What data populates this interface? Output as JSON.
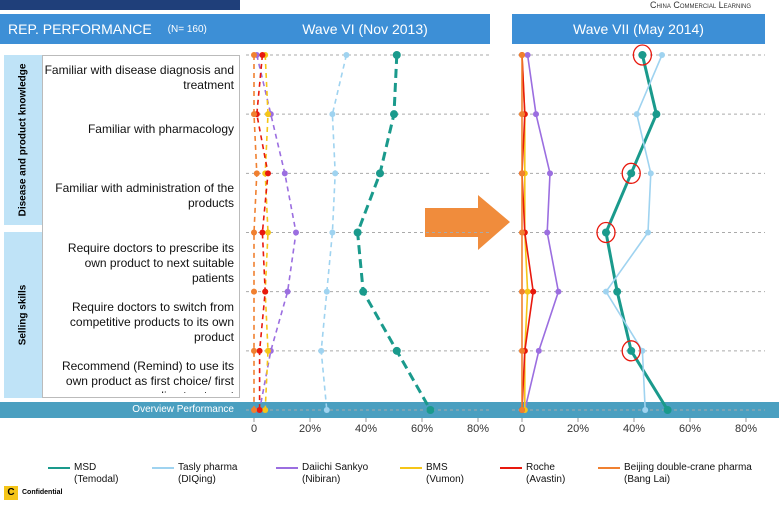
{
  "header": {
    "title": "REP. PERFORMANCE",
    "sample": "(N= 160)",
    "brand": "China Commercial Learning",
    "footer": "Confidential"
  },
  "groups": [
    "Disease and product knowledge",
    "Selling skills"
  ],
  "chart_data": [
    {
      "type": "line",
      "orientation": "horizontal",
      "title": "Wave VI (Nov 2013)",
      "line_style": "dashed",
      "categories": [
        "Familiar with disease diagnosis and treatment",
        "Familiar with pharmacology",
        "Familiar with administration of the products",
        "Require doctors to prescribe its own product to next suitable patients",
        "Require doctors to switch from competitive products to its own product",
        "Recommend (Remind) to use its own product as first choice/ first line treatment",
        "Overview Performance"
      ],
      "xlim": [
        0,
        80
      ],
      "xticks": [
        0,
        {
          "value": 20,
          "label": "20%"
        },
        {
          "value": 40,
          "label": "40%"
        },
        {
          "value": 60,
          "label": "60%"
        },
        {
          "value": 80,
          "label": "80%"
        }
      ],
      "grid": true,
      "series": [
        {
          "name": "MSD\n(Temodal)",
          "color": "#1a9a8c",
          "values": [
            51,
            50,
            45,
            37,
            39,
            51,
            63
          ]
        },
        {
          "name": "Tasly pharma\n(DIQing)",
          "color": "#9fd3f0",
          "values": [
            33,
            28,
            29,
            28,
            26,
            24,
            26
          ]
        },
        {
          "name": "Daiichi Sankyo\n(Nibiran)",
          "color": "#9b6ee0",
          "values": [
            1,
            6,
            11,
            15,
            12,
            6,
            2
          ]
        },
        {
          "name": "BMS\n(Vumon)",
          "color": "#f5c518",
          "values": [
            4,
            5,
            4,
            5,
            4,
            5,
            4
          ]
        },
        {
          "name": "Roche\n(Avastin)",
          "color": "#e8190e",
          "values": [
            3,
            1,
            5,
            3,
            4,
            2,
            2
          ]
        },
        {
          "name": "Beijing double-crane pharma\n(Bang Lai)",
          "color": "#f08030",
          "values": [
            0,
            0,
            1,
            0,
            0,
            0,
            0
          ]
        }
      ]
    },
    {
      "type": "line",
      "orientation": "horizontal",
      "title": "Wave VII (May 2014)",
      "line_style": "solid",
      "xlim": [
        0,
        80
      ],
      "xticks": [
        0,
        {
          "value": 20,
          "label": "20%"
        },
        {
          "value": 40,
          "label": "40%"
        },
        {
          "value": 60,
          "label": "60%"
        },
        {
          "value": 80,
          "label": "80%"
        }
      ],
      "grid": true,
      "series": [
        {
          "color": "#1a9a8c",
          "values": [
            43,
            48,
            39,
            30,
            34,
            39,
            52
          ]
        },
        {
          "color": "#9fd3f0",
          "values": [
            50,
            41,
            46,
            45,
            30,
            43,
            44
          ]
        },
        {
          "color": "#9b6ee0",
          "values": [
            2,
            5,
            10,
            9,
            13,
            6,
            1
          ]
        },
        {
          "color": "#f5c518",
          "values": [
            0,
            1,
            1,
            1,
            2,
            1,
            1
          ]
        },
        {
          "color": "#e8190e",
          "values": [
            0,
            1,
            0,
            1,
            4,
            1,
            0
          ]
        },
        {
          "color": "#f08030",
          "values": [
            0,
            0,
            0,
            0,
            0,
            0,
            0
          ]
        }
      ]
    }
  ]
}
